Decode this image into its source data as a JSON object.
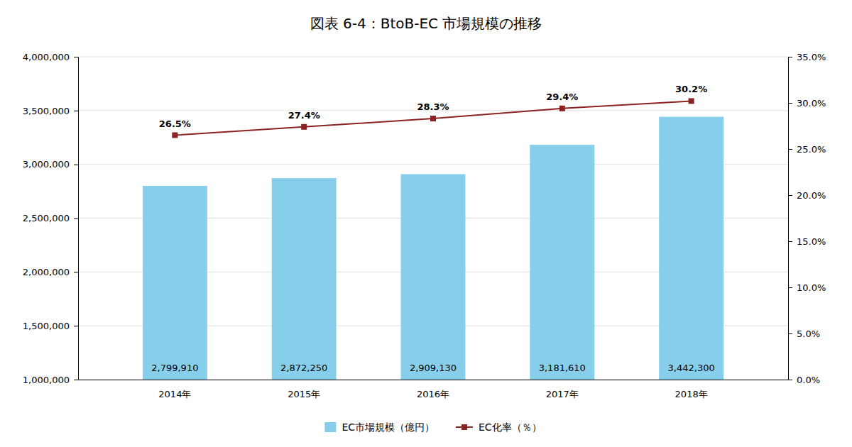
{
  "chart_data": {
    "type": "bar",
    "title": "図表  6-4：BtoB-EC 市場規模の推移",
    "categories": [
      "2014年",
      "2015年",
      "2016年",
      "2017年",
      "2018年"
    ],
    "series": [
      {
        "name": "EC市場規模（億円）",
        "type": "bar",
        "color": "#87CEEB",
        "values": [
          2799910,
          2872250,
          2909130,
          3181610,
          3442300
        ],
        "value_labels": [
          "2,799,910",
          "2,872,250",
          "2,909,130",
          "3,181,610",
          "3,442,300"
        ]
      },
      {
        "name": "EC化率（％）",
        "type": "line",
        "axis": "y2",
        "color": "#8B2222",
        "marker": "square",
        "values": [
          26.5,
          27.4,
          28.3,
          29.4,
          30.2
        ],
        "value_labels": [
          "26.5%",
          "27.4%",
          "28.3%",
          "29.4%",
          "30.2%"
        ]
      }
    ],
    "ylim": [
      1000000,
      4000000
    ],
    "yticks": [
      {
        "value": 1000000,
        "label": "1,000,000"
      },
      {
        "value": 1500000,
        "label": "1,500,000"
      },
      {
        "value": 2000000,
        "label": "2,000,000"
      },
      {
        "value": 2500000,
        "label": "2,500,000"
      },
      {
        "value": 3000000,
        "label": "3,000,000"
      },
      {
        "value": 3500000,
        "label": "3,500,000"
      },
      {
        "value": 4000000,
        "label": "4,000,000"
      }
    ],
    "y2lim": [
      0.0,
      35.0
    ],
    "y2ticks": [
      {
        "value": 0.0,
        "label": "0.0%"
      },
      {
        "value": 5.0,
        "label": "5.0%"
      },
      {
        "value": 10.0,
        "label": "10.0%"
      },
      {
        "value": 15.0,
        "label": "15.0%"
      },
      {
        "value": 20.0,
        "label": "20.0%"
      },
      {
        "value": 25.0,
        "label": "25.0%"
      },
      {
        "value": 30.0,
        "label": "30.0%"
      },
      {
        "value": 35.0,
        "label": "35.0%"
      }
    ],
    "grid": true,
    "legend": "bottom",
    "data_labels": true
  }
}
